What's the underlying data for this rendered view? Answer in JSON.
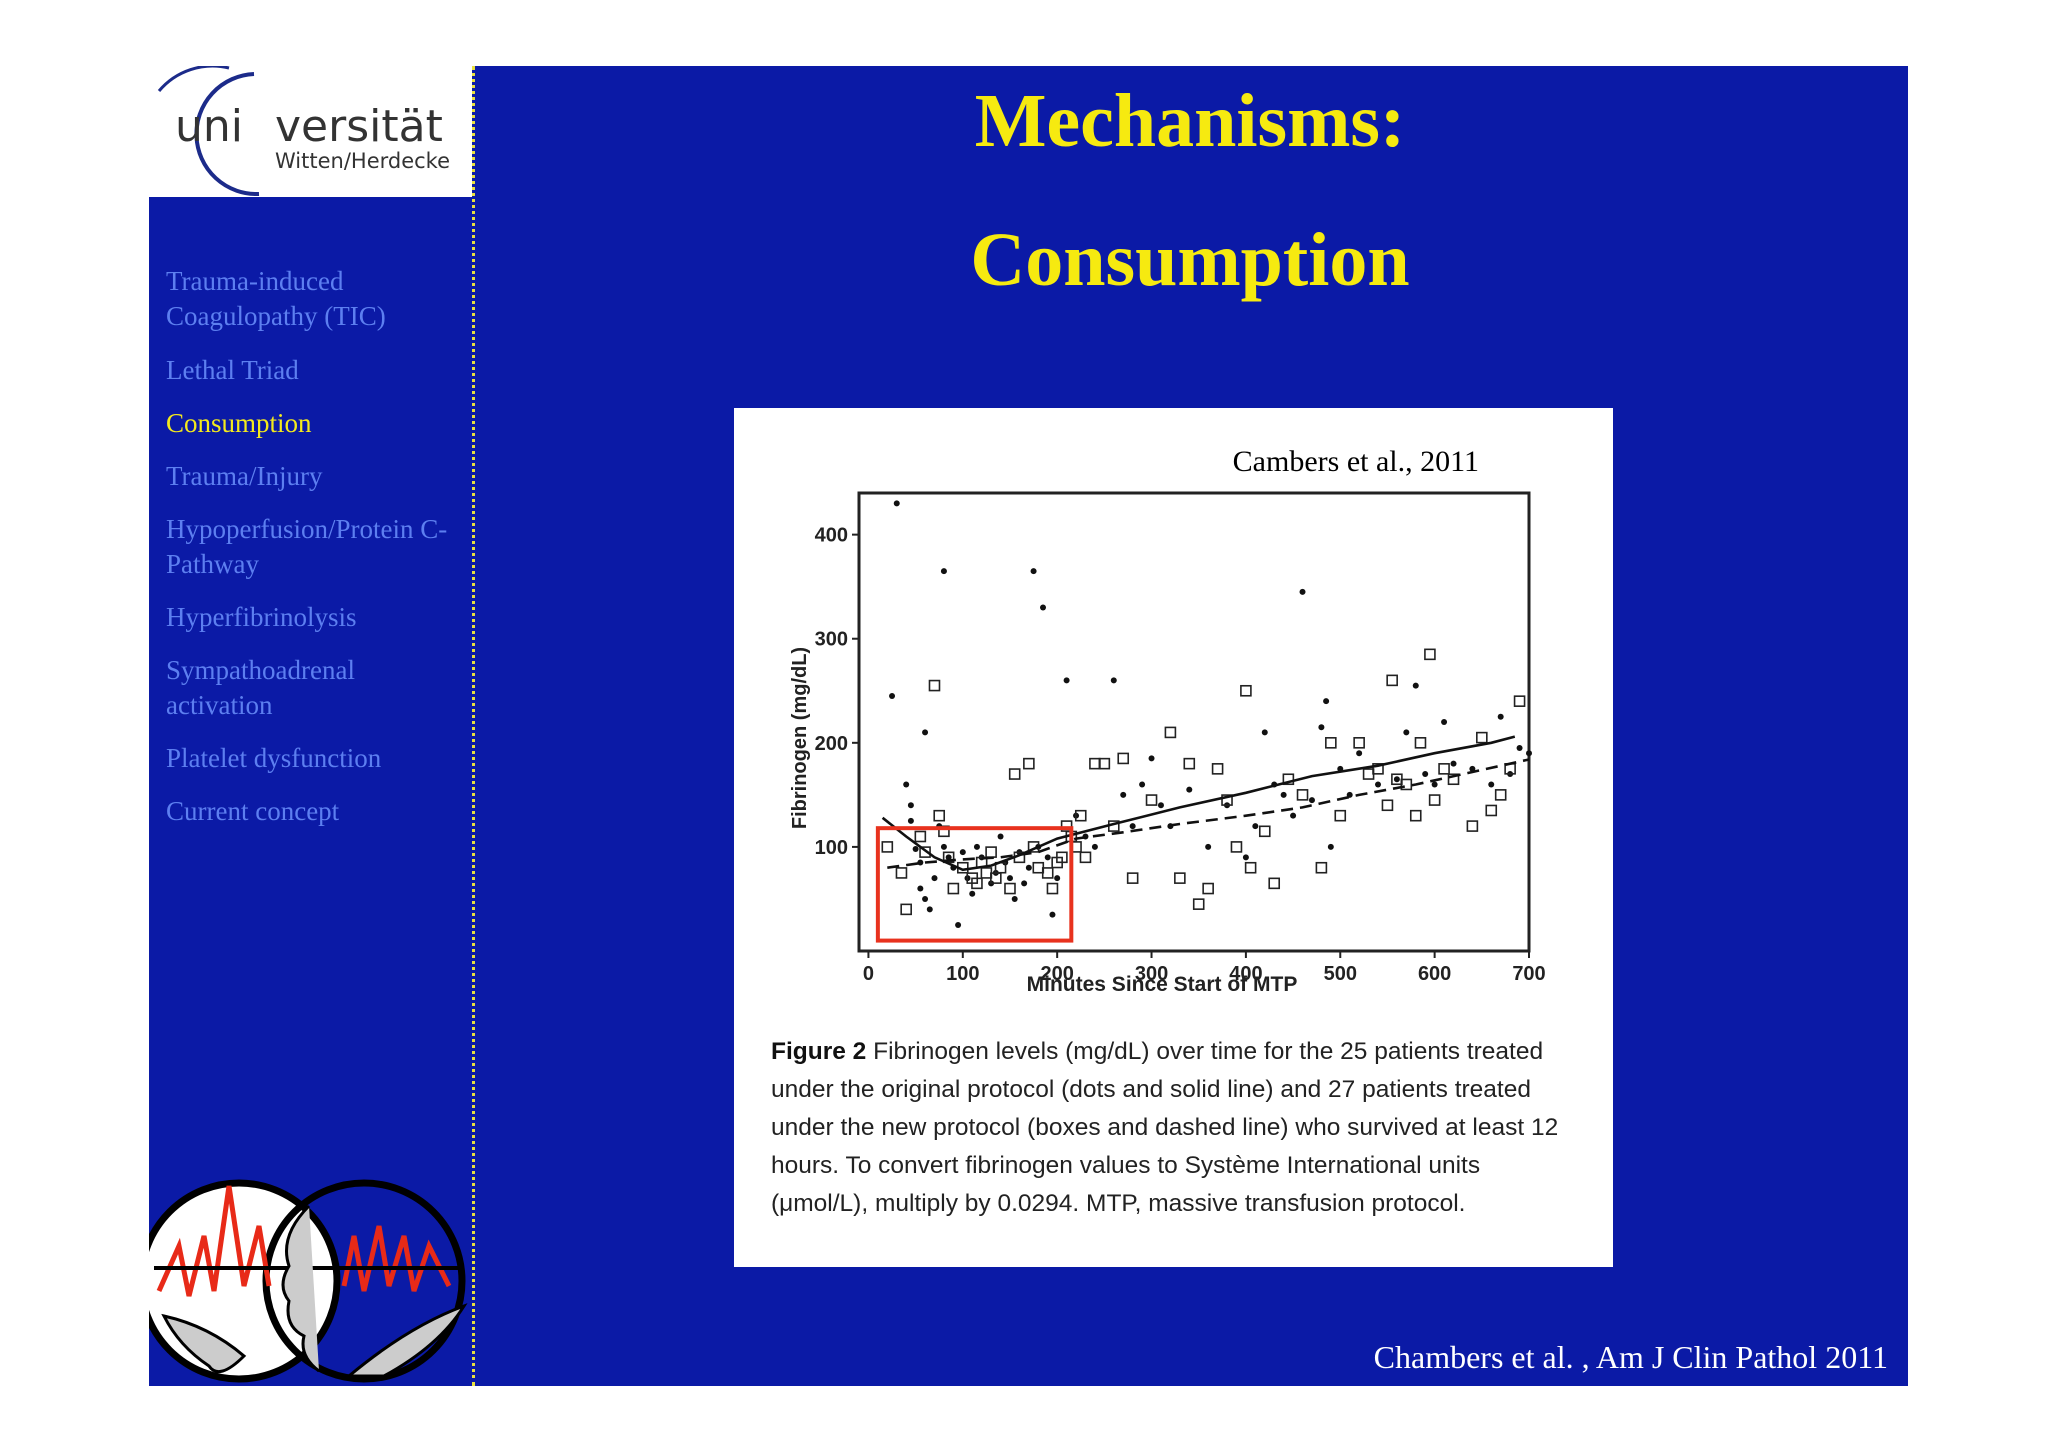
{
  "logo": {
    "line1_a": "uni",
    "line1_b": "versität",
    "line2": "Witten/Herdecke"
  },
  "nav": [
    {
      "label": "Trauma-induced Coagulopathy (TIC)",
      "active": false
    },
    {
      "label": "Lethal Triad",
      "active": false
    },
    {
      "label": "Consumption",
      "active": true
    },
    {
      "label": "Trauma/Injury",
      "active": false
    },
    {
      "label": "Hypoperfusion/Protein C-Pathway",
      "active": false
    },
    {
      "label": "Hyperfibrinolysis",
      "active": false
    },
    {
      "label": "Sympathoadrenal activation",
      "active": false
    },
    {
      "label": "Platelet dysfunction",
      "active": false
    },
    {
      "label": "Current concept",
      "active": false
    }
  ],
  "title": {
    "line1": "Mechanisms:",
    "line2": "Consumption"
  },
  "citation": "Chambers et al. , Am J Clin Pathol 2011",
  "figure": {
    "caption_label": "Figure 2",
    "caption_text": "Fibrinogen levels (mg/dL) over time for the 25 patients treated under the original protocol (dots and solid line) and 27 patients treated under the new protocol (boxes and dashed line) who survived at least 12 hours. To convert fibrinogen values to Système International units (μmol/L), multiply by 0.0294. MTP, massive transfusion protocol."
  },
  "chart_data": {
    "type": "scatter",
    "annotation": "Cambers et al., 2011",
    "xlabel": "Minutes Since Start of MTP",
    "ylabel": "Fibrinogen (mg/dL)",
    "xlim": [
      -10,
      700
    ],
    "ylim": [
      0,
      440
    ],
    "xticks": [
      0,
      100,
      200,
      300,
      400,
      500,
      600,
      700
    ],
    "yticks": [
      100,
      200,
      300,
      400
    ],
    "highlight_box": {
      "x": [
        10,
        215
      ],
      "y": [
        10,
        118
      ],
      "color": "#e8321e"
    },
    "series": [
      {
        "name": "original protocol (dots)",
        "marker": "dot",
        "points": [
          [
            25,
            245
          ],
          [
            30,
            430
          ],
          [
            40,
            160
          ],
          [
            45,
            140
          ],
          [
            45,
            125
          ],
          [
            50,
            98
          ],
          [
            55,
            85
          ],
          [
            55,
            60
          ],
          [
            60,
            210
          ],
          [
            60,
            50
          ],
          [
            65,
            40
          ],
          [
            70,
            70
          ],
          [
            75,
            120
          ],
          [
            80,
            365
          ],
          [
            80,
            100
          ],
          [
            85,
            90
          ],
          [
            90,
            80
          ],
          [
            95,
            25
          ],
          [
            100,
            95
          ],
          [
            105,
            70
          ],
          [
            110,
            55
          ],
          [
            115,
            100
          ],
          [
            120,
            90
          ],
          [
            130,
            65
          ],
          [
            135,
            75
          ],
          [
            140,
            110
          ],
          [
            145,
            85
          ],
          [
            150,
            70
          ],
          [
            155,
            50
          ],
          [
            160,
            95
          ],
          [
            165,
            65
          ],
          [
            170,
            80
          ],
          [
            175,
            365
          ],
          [
            180,
            100
          ],
          [
            185,
            330
          ],
          [
            190,
            90
          ],
          [
            195,
            35
          ],
          [
            200,
            70
          ],
          [
            210,
            260
          ],
          [
            220,
            130
          ],
          [
            230,
            110
          ],
          [
            240,
            100
          ],
          [
            260,
            260
          ],
          [
            270,
            150
          ],
          [
            280,
            120
          ],
          [
            290,
            160
          ],
          [
            300,
            185
          ],
          [
            310,
            140
          ],
          [
            320,
            120
          ],
          [
            340,
            155
          ],
          [
            360,
            100
          ],
          [
            380,
            140
          ],
          [
            400,
            90
          ],
          [
            410,
            120
          ],
          [
            420,
            210
          ],
          [
            430,
            160
          ],
          [
            440,
            150
          ],
          [
            450,
            130
          ],
          [
            460,
            345
          ],
          [
            470,
            145
          ],
          [
            480,
            215
          ],
          [
            485,
            240
          ],
          [
            490,
            100
          ],
          [
            500,
            175
          ],
          [
            510,
            150
          ],
          [
            520,
            190
          ],
          [
            540,
            160
          ],
          [
            560,
            165
          ],
          [
            570,
            210
          ],
          [
            580,
            255
          ],
          [
            590,
            170
          ],
          [
            600,
            160
          ],
          [
            610,
            220
          ],
          [
            620,
            180
          ],
          [
            640,
            175
          ],
          [
            660,
            160
          ],
          [
            670,
            225
          ],
          [
            680,
            170
          ],
          [
            690,
            195
          ],
          [
            700,
            190
          ]
        ]
      },
      {
        "name": "new protocol (boxes)",
        "marker": "box",
        "points": [
          [
            20,
            100
          ],
          [
            35,
            75
          ],
          [
            40,
            40
          ],
          [
            55,
            110
          ],
          [
            60,
            95
          ],
          [
            70,
            255
          ],
          [
            75,
            130
          ],
          [
            80,
            115
          ],
          [
            85,
            90
          ],
          [
            90,
            60
          ],
          [
            100,
            80
          ],
          [
            110,
            70
          ],
          [
            115,
            65
          ],
          [
            120,
            85
          ],
          [
            125,
            75
          ],
          [
            130,
            95
          ],
          [
            135,
            70
          ],
          [
            140,
            80
          ],
          [
            150,
            60
          ],
          [
            155,
            170
          ],
          [
            160,
            90
          ],
          [
            170,
            180
          ],
          [
            175,
            100
          ],
          [
            180,
            80
          ],
          [
            190,
            75
          ],
          [
            195,
            60
          ],
          [
            200,
            85
          ],
          [
            205,
            90
          ],
          [
            210,
            120
          ],
          [
            215,
            110
          ],
          [
            220,
            100
          ],
          [
            225,
            130
          ],
          [
            230,
            90
          ],
          [
            240,
            180
          ],
          [
            250,
            180
          ],
          [
            260,
            120
          ],
          [
            270,
            185
          ],
          [
            280,
            70
          ],
          [
            300,
            145
          ],
          [
            320,
            210
          ],
          [
            330,
            70
          ],
          [
            340,
            180
          ],
          [
            350,
            45
          ],
          [
            360,
            60
          ],
          [
            370,
            175
          ],
          [
            380,
            145
          ],
          [
            390,
            100
          ],
          [
            400,
            250
          ],
          [
            405,
            80
          ],
          [
            420,
            115
          ],
          [
            430,
            65
          ],
          [
            445,
            165
          ],
          [
            460,
            150
          ],
          [
            480,
            80
          ],
          [
            490,
            200
          ],
          [
            500,
            130
          ],
          [
            520,
            200
          ],
          [
            530,
            170
          ],
          [
            540,
            175
          ],
          [
            550,
            140
          ],
          [
            555,
            260
          ],
          [
            560,
            165
          ],
          [
            570,
            160
          ],
          [
            580,
            130
          ],
          [
            585,
            200
          ],
          [
            595,
            285
          ],
          [
            600,
            145
          ],
          [
            610,
            175
          ],
          [
            620,
            165
          ],
          [
            640,
            120
          ],
          [
            650,
            205
          ],
          [
            660,
            135
          ],
          [
            670,
            150
          ],
          [
            680,
            175
          ],
          [
            690,
            240
          ]
        ]
      }
    ],
    "trend_lines": [
      {
        "name": "original protocol (solid line)",
        "style": "solid",
        "points": [
          [
            15,
            128
          ],
          [
            40,
            110
          ],
          [
            70,
            90
          ],
          [
            100,
            78
          ],
          [
            130,
            82
          ],
          [
            160,
            92
          ],
          [
            200,
            108
          ],
          [
            260,
            122
          ],
          [
            330,
            138
          ],
          [
            400,
            152
          ],
          [
            470,
            168
          ],
          [
            540,
            178
          ],
          [
            600,
            190
          ],
          [
            660,
            200
          ],
          [
            685,
            206
          ]
        ]
      },
      {
        "name": "new protocol (dashed line)",
        "style": "dashed",
        "points": [
          [
            20,
            80
          ],
          [
            60,
            85
          ],
          [
            100,
            88
          ],
          [
            140,
            90
          ],
          [
            180,
            95
          ],
          [
            220,
            108
          ],
          [
            270,
            114
          ],
          [
            330,
            122
          ],
          [
            400,
            130
          ],
          [
            460,
            138
          ],
          [
            520,
            150
          ],
          [
            580,
            160
          ],
          [
            640,
            172
          ],
          [
            700,
            184
          ]
        ]
      }
    ]
  }
}
